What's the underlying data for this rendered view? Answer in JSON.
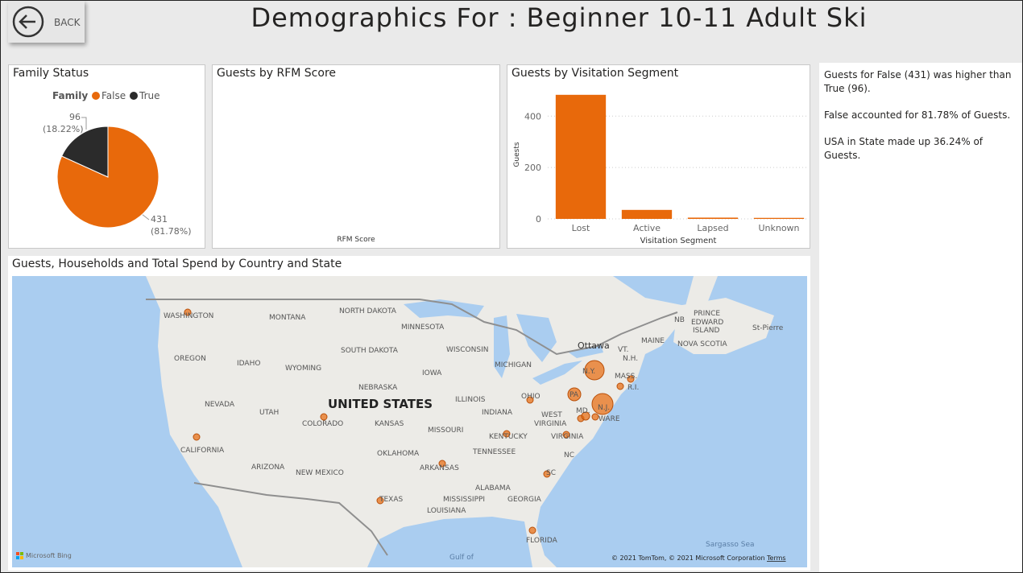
{
  "header": {
    "back": "BACK",
    "title": "Demographics For : Beginner 10-11 Adult Ski"
  },
  "chart_data": [
    {
      "type": "pie",
      "title": "Family Status",
      "legend_title": "Family",
      "categories": [
        "False",
        "True"
      ],
      "values": [
        431,
        96
      ],
      "percent_labels": [
        "(81.78%)",
        "(18.22%)"
      ],
      "colors": [
        "#e8690b",
        "#2b2b2b"
      ]
    },
    {
      "type": "bar",
      "title": "Guests by Visitation Segment",
      "x_label": "Visitation Segment",
      "y_label": "Guests",
      "categories": [
        "Lost",
        "Active",
        "Lapsed",
        "Unknown"
      ],
      "values": [
        483,
        35,
        5,
        4
      ],
      "color": "#e8690b",
      "ylim": [
        0,
        520
      ],
      "yticks": [
        0,
        200,
        400
      ],
      "grid": true
    },
    {
      "type": "bar",
      "title": "Guests by RFM Score",
      "x_label": "RFM Score"
    }
  ],
  "narrative": [
    "Guests for False (431) was higher than True (96).",
    "False accounted for 81.78% of Guests.",
    "USA in State  made up 36.24% of Guests."
  ],
  "map": {
    "title": "Guests, Households and Total Spend by Country and State",
    "labels": [
      "WASHINGTON",
      "MONTANA",
      "NORTH DAKOTA",
      "MINNESOTA",
      "OREGON",
      "IDAHO",
      "SOUTH DAKOTA",
      "WISCONSIN",
      "WYOMING",
      "MICHIGAN",
      "IOWA",
      "NEBRASKA",
      "NEVADA",
      "UTAH",
      "UNITED STATES",
      "ILLINOIS",
      "OHIO",
      "COLORADO",
      "KANSAS",
      "INDIANA",
      "WEST",
      "VIRGINIA",
      "MISSOURI",
      "CALIFORNIA",
      "KENTUCKY",
      "VIRGINIA",
      "TENNESSEE",
      "NC",
      "OKLAHOMA",
      "ARIZONA",
      "NEW MEXICO",
      "ARKANSAS",
      "SC",
      "ALABAMA",
      "MISSISSIPPI",
      "GEORGIA",
      "TEXAS",
      "LOUISIANA",
      "FLORIDA",
      "Ottawa",
      "VT.",
      "N.H.",
      "MAINE",
      "MASS.",
      "R.I.",
      "N.Y.",
      "PA",
      "MD.",
      "N.J.",
      "WARE",
      "NB",
      "PRINCE",
      "EDWARD",
      "ISLAND",
      "NOVA SCOTIA",
      "St-Pierre",
      "Sargasso Sea",
      "Gulf of",
      "Microsoft Bing",
      "© 2021 TomTom, © 2021 Microsoft Corporation",
      "Terms"
    ]
  }
}
